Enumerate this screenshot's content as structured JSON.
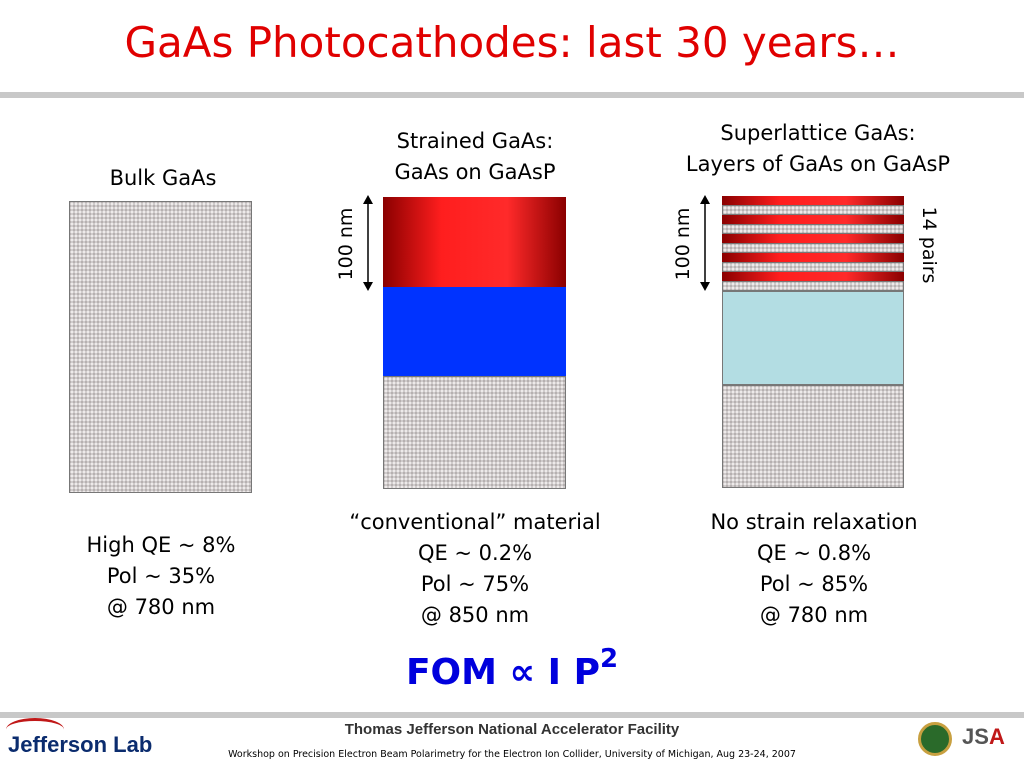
{
  "title": "GaAs Photocathodes: last 30 years…",
  "columns": {
    "bulk": {
      "heading": "Bulk GaAs",
      "specs": [
        "High QE ~ 8%",
        "Pol ~ 35%",
        "@ 780 nm"
      ]
    },
    "strained": {
      "heading": [
        "Strained GaAs:",
        "GaAs on GaAsP"
      ],
      "thickness_label": "100 nm",
      "specs": [
        "“conventional” material",
        "QE ~ 0.2%",
        "Pol ~ 75%",
        "@ 850 nm"
      ]
    },
    "superlattice": {
      "heading": [
        "Superlattice GaAs:",
        "Layers of GaAs on GaAsP"
      ],
      "thickness_label": "100 nm",
      "pairs_label": "14 pairs",
      "specs": [
        "No strain relaxation",
        "QE ~ 0.8%",
        "Pol ~ 85%",
        "@ 780 nm"
      ]
    }
  },
  "formula": {
    "text": "FOM ∝ I P",
    "exponent": "2"
  },
  "footer": {
    "logo": "Jefferson Lab",
    "facility": "Thomas Jefferson National Accelerator Facility",
    "workshop": "Workshop on Precision Electron Beam Polarimetry for the Electron Ion Collider, University of Michigan, Aug 23-24, 2007",
    "jsa_logo": {
      "j": "J",
      "s": "S",
      "a": "A"
    }
  },
  "colors": {
    "title": "#e00000",
    "strained_layer": "#ff1e1e",
    "substrate_layer": "#0033ff",
    "superlattice_buffer": "#b3dde3",
    "formula": "#0000dd"
  }
}
